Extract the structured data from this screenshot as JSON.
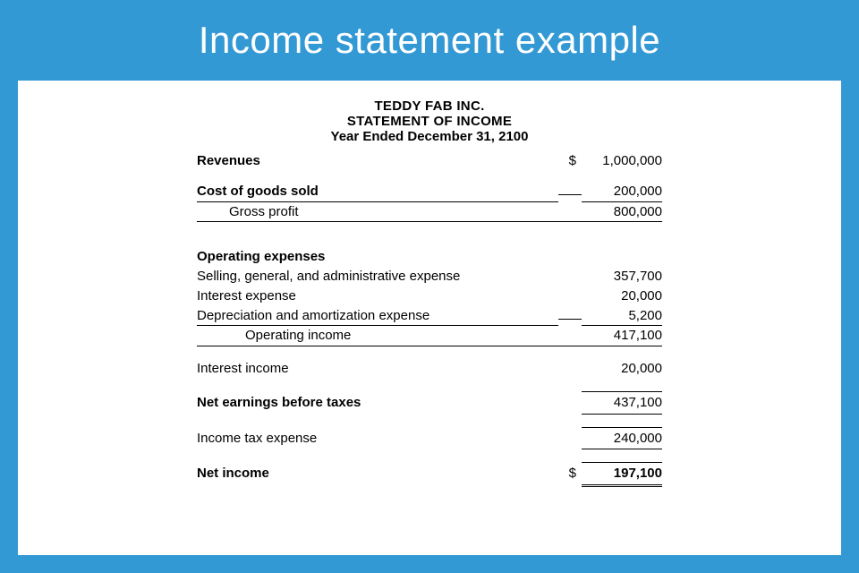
{
  "banner": {
    "title": "Income statement example",
    "background_color": "#3399d4",
    "text_color": "#ffffff",
    "font_size_pt": 42,
    "font_weight": 300
  },
  "paper": {
    "background_color": "#ffffff"
  },
  "document": {
    "company_name": "TEDDY FAB INC.",
    "title": "STATEMENT OF INCOME",
    "period": "Year Ended December 31, 2100",
    "header_font_size_pt": 15,
    "body_font_size_pt": 15,
    "currency_symbol": "$",
    "rule_color": "#000000"
  },
  "rows": {
    "revenues": {
      "label": "Revenues",
      "symbol": "$",
      "value": "1,000,000",
      "bold": true
    },
    "cogs": {
      "label": "Cost of goods sold",
      "value": "200,000",
      "bold": true,
      "underlined_row": true
    },
    "gross_profit": {
      "label": "Gross profit",
      "value": "800,000",
      "indent": 1,
      "row_bottom_rule": true
    },
    "opex_heading": {
      "label": "Operating expenses",
      "bold": true
    },
    "sga": {
      "label": "Selling, general, and administrative expense",
      "value": "357,700"
    },
    "interest_expense": {
      "label": "Interest expense",
      "value": "20,000"
    },
    "depreciation": {
      "label": "Depreciation and amortization expense",
      "value": "5,200",
      "underlined_row": true
    },
    "operating_income": {
      "label": "Operating income",
      "value": "417,100",
      "indent": 2,
      "row_bottom_rule": true
    },
    "interest_income": {
      "label": "Interest income",
      "value": "20,000"
    },
    "net_before_tax": {
      "label": "Net earnings before taxes",
      "value": "437,100",
      "bold": true,
      "value_top_rule": true,
      "value_bottom_rule": true
    },
    "income_tax": {
      "label": "Income tax expense",
      "value": "240,000",
      "value_top_rule": true,
      "value_bottom_rule": true
    },
    "net_income": {
      "label": "Net income",
      "symbol": "$",
      "value": "197,100",
      "bold": true,
      "value_top_rule": true,
      "double_underline": true
    }
  }
}
